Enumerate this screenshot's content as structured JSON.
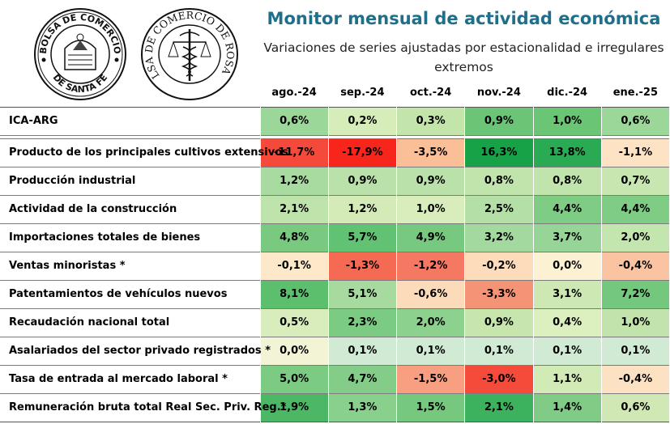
{
  "header": {
    "title": "Monitor mensual de actividad económica",
    "subtitle": "Variaciones de series ajustadas por estacionalidad e irregulares extremos"
  },
  "logos": {
    "santa_fe": {
      "top_text": "BOLSA DE COMERCIO",
      "bottom_text": "DE SANTA FE"
    },
    "rosario": {
      "ring_text": "BOLSA DE COMERCIO DE ROSARIO"
    }
  },
  "table": {
    "columns": [
      "ago.-24",
      "sep.-24",
      "oct.-24",
      "nov.-24",
      "dic.-24",
      "ene.-25"
    ],
    "rows": [
      {
        "label": "ICA-ARG",
        "values": [
          "0,6%",
          "0,2%",
          "0,3%",
          "0,9%",
          "1,0%",
          "0,6%"
        ],
        "colors": [
          "#9cd79a",
          "#d6ecb9",
          "#c3e5ab",
          "#6cc576",
          "#6ac574",
          "#9cd79a"
        ]
      },
      {
        "label": "Producto de los principales cultivos extensivos",
        "values": [
          "-11,7%",
          "-17,9%",
          "-3,5%",
          "16,3%",
          "13,8%",
          "-1,1%"
        ],
        "colors": [
          "#f54a3b",
          "#f8251c",
          "#fbbf98",
          "#18a248",
          "#2aaa52",
          "#fde3c3"
        ]
      },
      {
        "label": "Producción industrial",
        "values": [
          "1,2%",
          "0,9%",
          "0,9%",
          "0,8%",
          "0,8%",
          "0,7%"
        ],
        "colors": [
          "#a8dba0",
          "#b9e1a9",
          "#b9e1a9",
          "#c0e4ab",
          "#c0e4ab",
          "#c8e6af"
        ]
      },
      {
        "label": "Actividad de la construcción",
        "values": [
          "2,1%",
          "1,2%",
          "1,0%",
          "2,5%",
          "4,4%",
          "4,4%"
        ],
        "colors": [
          "#bee3ab",
          "#d4ebb8",
          "#d9edbc",
          "#b4dfa7",
          "#7fcc85",
          "#7fcc85"
        ]
      },
      {
        "label": "Importaciones totales de bienes",
        "values": [
          "4,8%",
          "5,7%",
          "4,9%",
          "3,2%",
          "3,7%",
          "2,0%"
        ],
        "colors": [
          "#79ca80",
          "#62c274",
          "#77c97f",
          "#a3d99e",
          "#96d597",
          "#c3e5ae"
        ]
      },
      {
        "label": "Ventas minoristas *",
        "values": [
          "-0,1%",
          "-1,3%",
          "-1,2%",
          "-0,2%",
          "0,0%",
          "-0,4%"
        ],
        "colors": [
          "#fde8c9",
          "#f46a53",
          "#f57962",
          "#fcdcbb",
          "#fdf1d4",
          "#fac4a3"
        ]
      },
      {
        "label": "Patentamientos de vehículos nuevos",
        "values": [
          "8,1%",
          "5,1%",
          "-0,6%",
          "-3,3%",
          "3,1%",
          "7,2%"
        ],
        "colors": [
          "#5cbf6e",
          "#a6da9f",
          "#fbdbba",
          "#f49375",
          "#cde8b3",
          "#74c87d"
        ]
      },
      {
        "label": "Recaudación nacional total",
        "values": [
          "0,5%",
          "2,3%",
          "2,0%",
          "0,9%",
          "0,4%",
          "1,0%"
        ],
        "colors": [
          "#d9edbc",
          "#7ccb83",
          "#8dd18f",
          "#c6e6ae",
          "#dcefbe",
          "#c2e4ac"
        ]
      },
      {
        "label": "Asalariados del sector privado registrados *",
        "values": [
          "0,0%",
          "0,1%",
          "0,1%",
          "0,1%",
          "0,1%",
          "0,1%"
        ],
        "colors": [
          "#f3f4d5",
          "#d0ead4",
          "#d0ead4",
          "#d0ead4",
          "#d0ead4",
          "#d0ead4"
        ]
      },
      {
        "label": "Tasa de entrada al mercado laboral *",
        "values": [
          "5,0%",
          "4,7%",
          "-1,5%",
          "-3,0%",
          "1,1%",
          "-0,4%"
        ],
        "colors": [
          "#7ccb83",
          "#84cd88",
          "#f99f81",
          "#f44b3a",
          "#d2eab6",
          "#fce2c3"
        ]
      },
      {
        "label": "Remuneración bruta total Real Sec. Priv. Reg.*",
        "values": [
          "1,9%",
          "1,3%",
          "1,5%",
          "2,1%",
          "1,4%",
          "0,6%"
        ],
        "colors": [
          "#4cb866",
          "#8ad08d",
          "#76c87f",
          "#3cb15e",
          "#80cc86",
          "#d0e9b4"
        ]
      }
    ]
  }
}
